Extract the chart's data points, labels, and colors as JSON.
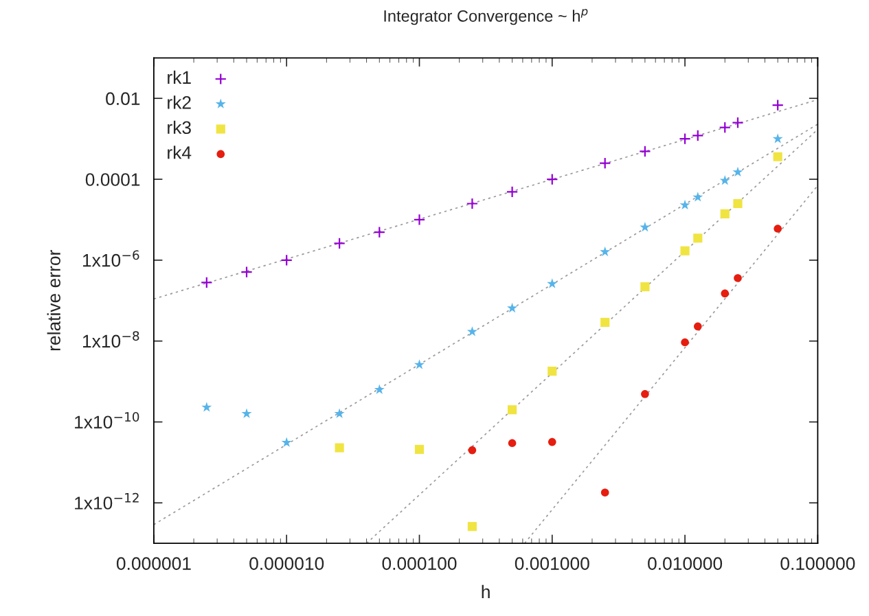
{
  "chart_data": {
    "type": "scatter",
    "title": "Integrator Convergence ~ h$^{p}$",
    "xlabel": "h",
    "ylabel": "relative error",
    "log": "xy",
    "legend": "top left",
    "grid": false,
    "xlim": [
      1e-06,
      0.1
    ],
    "xticks": [
      {
        "value": 1e-06,
        "label": "0.000001"
      },
      {
        "value": 1e-05,
        "label": "0.000010"
      },
      {
        "value": 0.0001,
        "label": "0.000100"
      },
      {
        "value": 0.001,
        "label": "0.001000"
      },
      {
        "value": 0.01,
        "label": "0.010000"
      },
      {
        "value": 0.1,
        "label": "0.100000"
      }
    ],
    "ylim": [
      1e-13,
      0.1
    ],
    "yticks": [
      {
        "value": 1e-12,
        "label": "1x10$^{−12}$"
      },
      {
        "value": 1e-10,
        "label": "1x10$^{−10}$"
      },
      {
        "value": 1e-08,
        "label": "1x10$^{−8}$"
      },
      {
        "value": 1e-06,
        "label": "1x10$^{−6}$"
      },
      0.0001,
      0.01
    ],
    "series": [
      {
        "name": "rk1",
        "marker": "cross",
        "color": "#9400d3",
        "x": [
          2.5e-06,
          5e-06,
          1e-05,
          2.5e-05,
          5e-05,
          0.0001,
          0.00025,
          0.0005,
          0.001,
          0.0025,
          0.005,
          0.01,
          0.0125,
          0.02,
          0.025,
          0.05
        ],
        "values": [
          2.8e-07,
          5.1e-07,
          1e-06,
          2.6e-06,
          4.9e-06,
          1e-05,
          2.5e-05,
          4.9e-05,
          0.0001,
          0.00025,
          0.00049,
          0.001,
          0.0012,
          0.0019,
          0.0025,
          0.0068
        ]
      },
      {
        "name": "rk2",
        "marker": "star",
        "color": "#56b4e9",
        "x": [
          2.5e-06,
          5e-06,
          1e-05,
          2.5e-05,
          5e-05,
          0.0001,
          0.00025,
          0.0005,
          0.001,
          0.0025,
          0.005,
          0.01,
          0.0125,
          0.02,
          0.025,
          0.05
        ],
        "values": [
          2.3e-10,
          1.6e-10,
          3.1e-11,
          1.6e-10,
          6.3e-10,
          2.6e-09,
          1.7e-08,
          6.5e-08,
          2.6e-07,
          1.6e-06,
          6.5e-06,
          2.3e-05,
          3.6e-05,
          9.3e-05,
          0.00015,
          0.001
        ]
      },
      {
        "name": "rk3",
        "marker": "square",
        "color": "#f0e442",
        "x": [
          2.5e-05,
          0.0001,
          0.00025,
          0.0005,
          0.001,
          0.0025,
          0.005,
          0.01,
          0.0125,
          0.02,
          0.025,
          0.05
        ],
        "values": [
          2.3e-11,
          2.1e-11,
          2.6e-13,
          2e-10,
          1.8e-09,
          2.9e-08,
          2.2e-07,
          1.7e-06,
          3.5e-06,
          1.4e-05,
          2.5e-05,
          0.00036
        ]
      },
      {
        "name": "rk4",
        "marker": "circle",
        "color": "#e51e10",
        "x": [
          0.00025,
          0.0005,
          0.001,
          0.0025,
          0.005,
          0.01,
          0.0125,
          0.02,
          0.025,
          0.05
        ],
        "values": [
          2e-11,
          3e-11,
          3.2e-11,
          1.8e-12,
          4.9e-10,
          9.3e-09,
          2.3e-08,
          1.5e-07,
          3.6e-07,
          6e-06
        ]
      },
      {
        "type": "line",
        "marker": "none",
        "line_style": "dotted",
        "color": "#999999",
        "x": [
          1e-06,
          0.1
        ],
        "values": [
          1.1e-07,
          0.0093
        ]
      },
      {
        "type": "line",
        "marker": "none",
        "line_style": "dotted",
        "color": "#999999",
        "x": [
          1e-06,
          0.1
        ],
        "values": [
          2.9e-13,
          0.0023
        ]
      },
      {
        "type": "line",
        "marker": "none",
        "line_style": "dotted",
        "color": "#999999",
        "x": [
          4e-05,
          0.1
        ],
        "values": [
          1e-13,
          0.0017
        ]
      },
      {
        "type": "line",
        "marker": "none",
        "line_style": "dotted",
        "color": "#999999",
        "x": [
          0.00062,
          0.1
        ],
        "values": [
          1e-13,
          7e-05
        ]
      }
    ]
  }
}
